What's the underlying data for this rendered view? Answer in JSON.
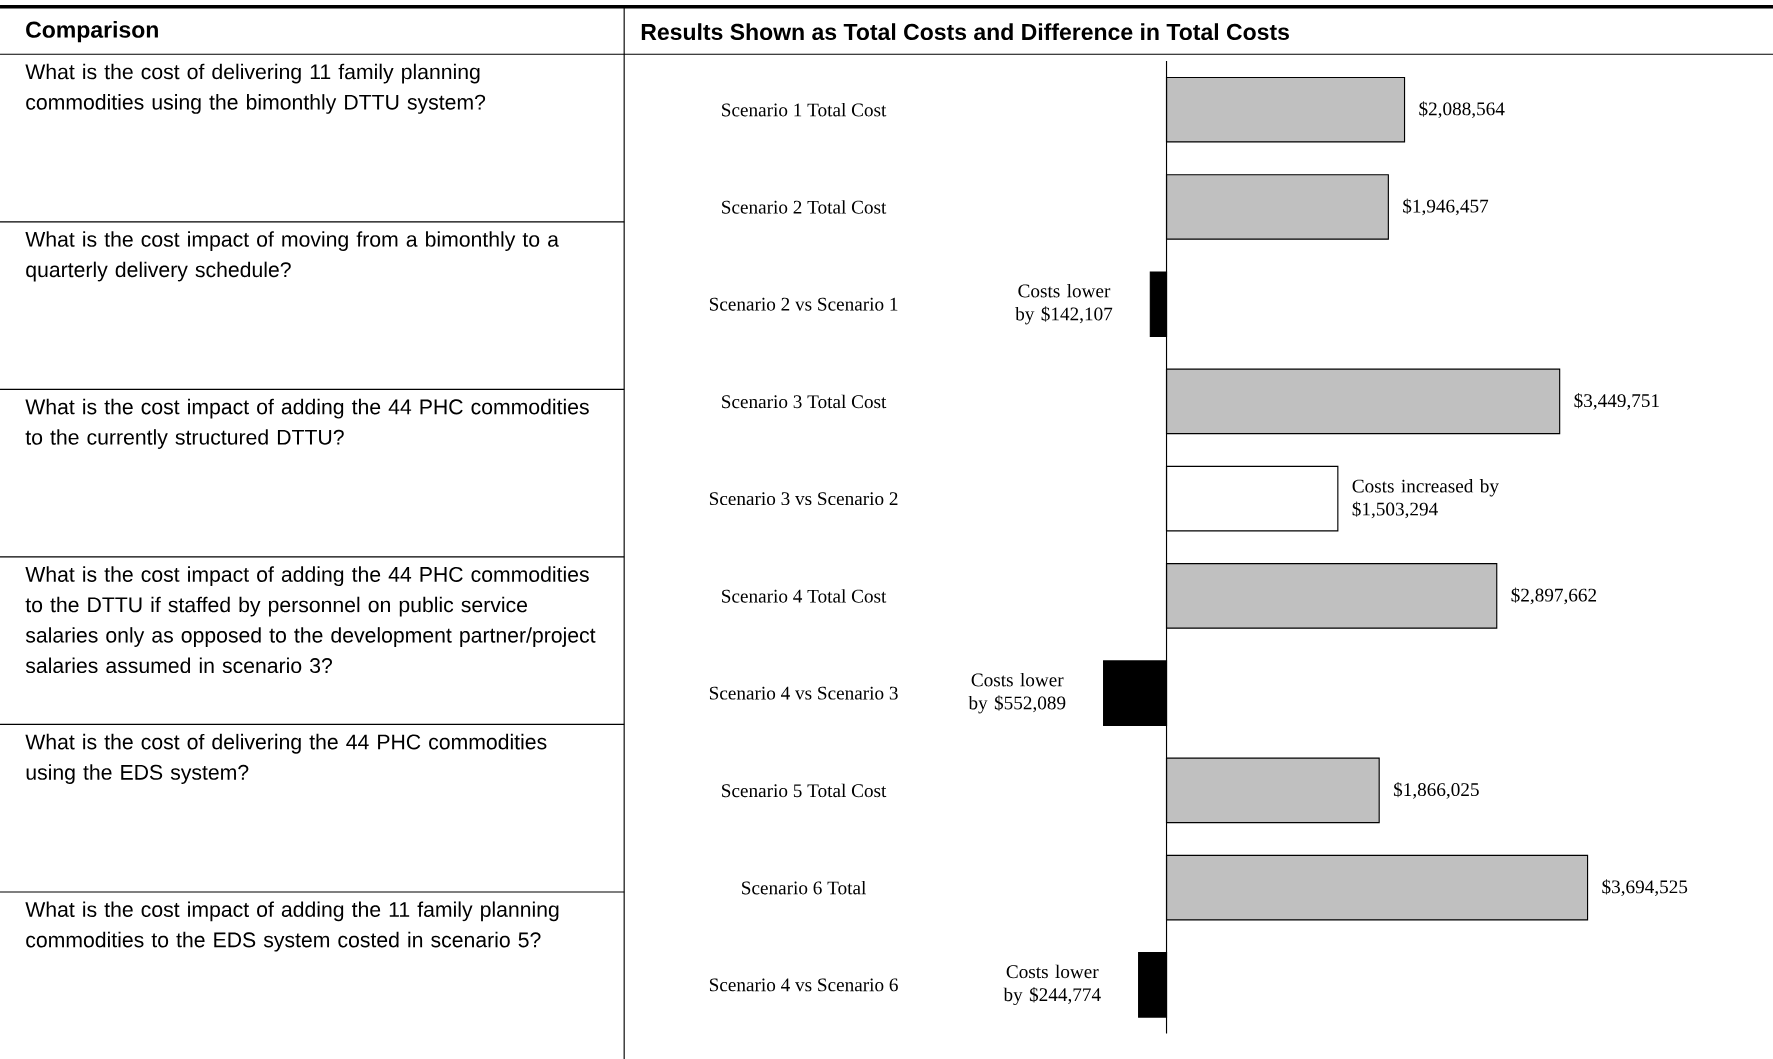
{
  "chart_data": {
    "type": "bar",
    "orientation": "horizontal",
    "title": "Results Shown as Total Costs and Difference in Total Costs",
    "categories": [
      "Scenario 1 Total Cost",
      "Scenario 2 Total Cost",
      "Scenario 2 vs Scenario 1",
      "Scenario 3 Total Cost",
      "Scenario 3 vs Scenario 2",
      "Scenario 4 Total Cost",
      "Scenario 4 vs Scenario 3",
      "Scenario 5 Total Cost",
      "Scenario 6 Total",
      "Scenario 4 vs Scenario 6"
    ],
    "values": [
      2088564,
      1946457,
      -142107,
      3449751,
      1503294,
      2897662,
      -552089,
      1866025,
      3694525,
      -244774
    ],
    "colors": [
      "#c0c0c0",
      "#c0c0c0",
      "#000000",
      "#c0c0c0",
      "#ffffff",
      "#c0c0c0",
      "#000000",
      "#c0c0c0",
      "#c0c0c0",
      "#000000"
    ],
    "value_labels": [
      "$2,088,564",
      "$1,946,457",
      "Costs lower by $142,107",
      "$3,449,751",
      "Costs increased by $1,503,294",
      "$2,897,662",
      "Costs lower by $552,089",
      "$1,866,025",
      "$3,694,525",
      "Costs lower by $244,774"
    ],
    "annotations": [
      "Comparison",
      "What is the cost of delivering 11 family planning commodities using the bimonthly DTTU system?",
      "What is the cost impact of moving from a bimonthly to a quarterly delivery schedule?",
      "What is the cost impact of adding the 44 PHC commodities to the currently structured DTTU?",
      "What is the cost impact of adding the 44 PHC commodities to the DTTU if staffed by personnel on public service salaries only as opposed to the development partner/project salaries assumed in scenario 3?",
      "What is the cost of delivering the 44 PHC commodities using the EDS system?",
      "What is the cost impact of adding the 11 family planning commodities to the EDS system costed in scenario 5?"
    ]
  }
}
